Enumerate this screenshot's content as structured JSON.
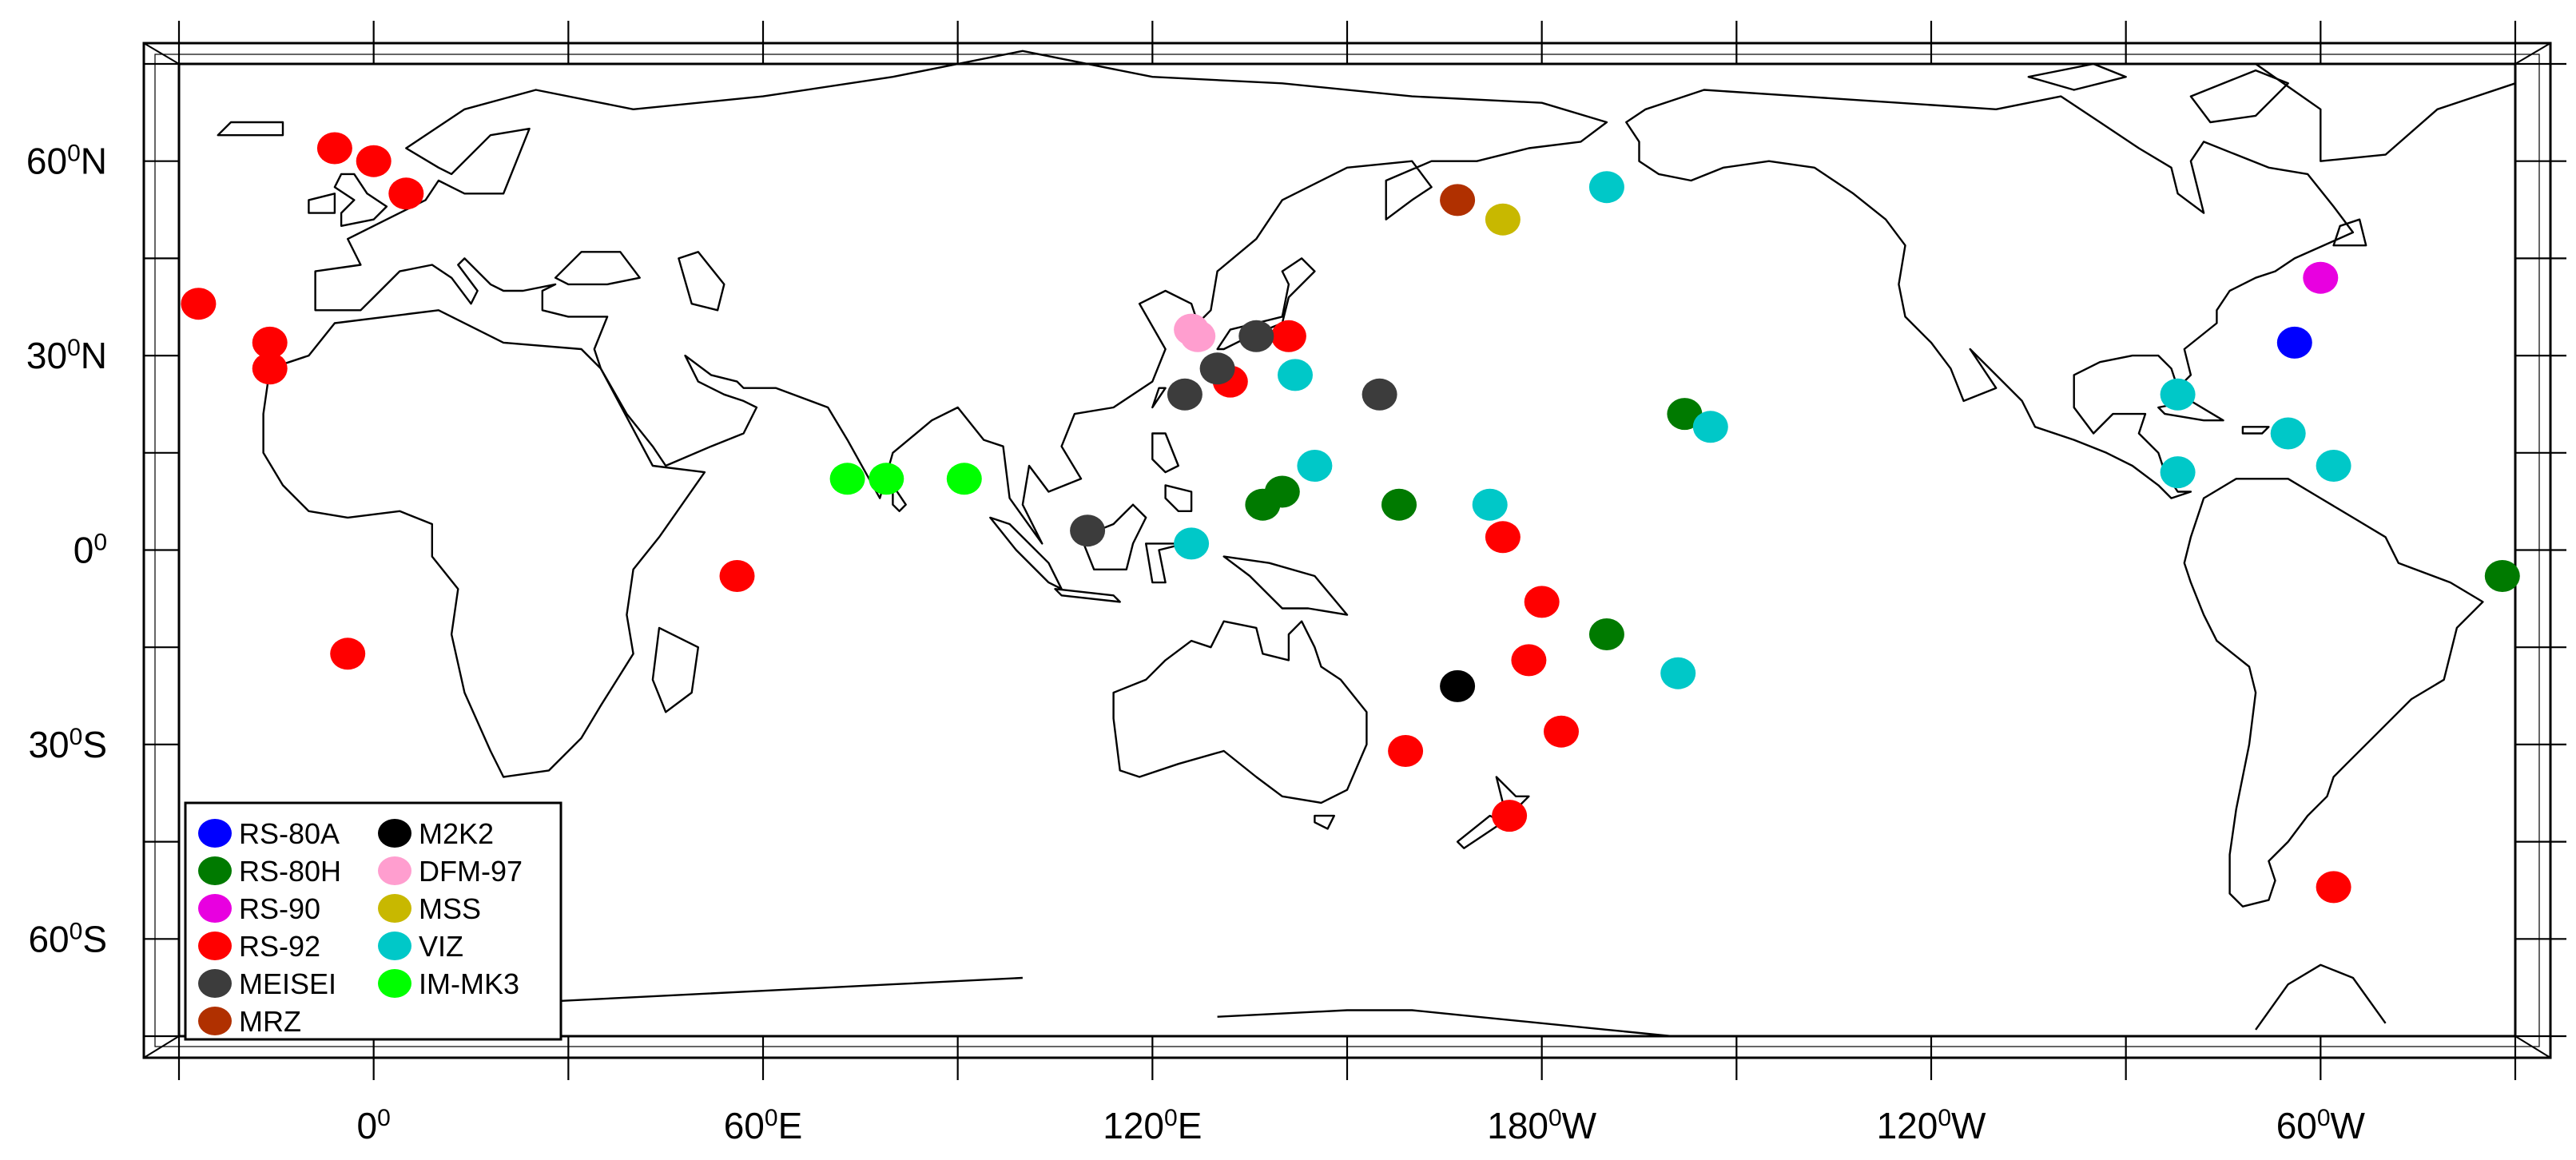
{
  "map": {
    "projection": "equirectangular",
    "center_longitude": 180,
    "lon_range": [
      -30,
      330
    ],
    "lat_range": [
      -75,
      75
    ],
    "x_ticks": [
      {
        "lon": 0,
        "num": "0",
        "sup": "0",
        "hem": ""
      },
      {
        "lon": 60,
        "num": "60",
        "sup": "0",
        "hem": "E"
      },
      {
        "lon": 120,
        "num": "120",
        "sup": "0",
        "hem": "E"
      },
      {
        "lon": 180,
        "num": "180",
        "sup": "0",
        "hem": "W"
      },
      {
        "lon": 240,
        "num": "120",
        "sup": "0",
        "hem": "W"
      },
      {
        "lon": 300,
        "num": "60",
        "sup": "0",
        "hem": "W"
      }
    ],
    "y_ticks": [
      {
        "lat": 60,
        "num": "60",
        "sup": "0",
        "hem": "N"
      },
      {
        "lat": 30,
        "num": "30",
        "sup": "0",
        "hem": "N"
      },
      {
        "lat": 0,
        "num": "0",
        "sup": "0",
        "hem": ""
      },
      {
        "lat": -30,
        "num": "30",
        "sup": "0",
        "hem": "S"
      },
      {
        "lat": -60,
        "num": "60",
        "sup": "0",
        "hem": "S"
      }
    ],
    "coastline_color": "#000000"
  },
  "legend": {
    "position": "bottom-left",
    "items": [
      {
        "key": "RS-80A",
        "label": "RS-80A",
        "color": "#0000ff"
      },
      {
        "key": "RS-80H",
        "label": "RS-80H",
        "color": "#007a00"
      },
      {
        "key": "RS-90",
        "label": "RS-90",
        "color": "#e800e0"
      },
      {
        "key": "RS-92",
        "label": "RS-92",
        "color": "#ff0000"
      },
      {
        "key": "MEISEI",
        "label": "MEISEI",
        "color": "#3c3c3c"
      },
      {
        "key": "MRZ",
        "label": "MRZ",
        "color": "#b03000"
      },
      {
        "key": "M2K2",
        "label": "M2K2",
        "color": "#000000"
      },
      {
        "key": "DFM-97",
        "label": "DFM-97",
        "color": "#ff9ecf"
      },
      {
        "key": "MSS",
        "label": "MSS",
        "color": "#c8b800"
      },
      {
        "key": "VIZ",
        "label": "VIZ",
        "color": "#00c8c8"
      },
      {
        "key": "IM-MK3",
        "label": "IM-MK3",
        "color": "#00ff00"
      }
    ]
  },
  "chart_data": {
    "type": "scatter",
    "title": "",
    "xlabel": "",
    "ylabel": "",
    "series": [
      {
        "name": "RS-80A",
        "points": [
          {
            "lon": 296,
            "lat": 32
          }
        ]
      },
      {
        "name": "RS-80H",
        "points": [
          {
            "lon": 137,
            "lat": 7
          },
          {
            "lon": 140,
            "lat": 9
          },
          {
            "lon": 158,
            "lat": 7
          },
          {
            "lon": 190,
            "lat": -13
          },
          {
            "lon": 202,
            "lat": 21
          },
          {
            "lon": 328,
            "lat": -4
          }
        ]
      },
      {
        "name": "RS-90",
        "points": [
          {
            "lon": 300,
            "lat": 42
          }
        ]
      },
      {
        "name": "RS-92",
        "points": [
          {
            "lon": -6,
            "lat": 62
          },
          {
            "lon": 0,
            "lat": 60
          },
          {
            "lon": 5,
            "lat": 55
          },
          {
            "lon": -27,
            "lat": 38
          },
          {
            "lon": -16,
            "lat": 32
          },
          {
            "lon": -16,
            "lat": 28
          },
          {
            "lon": 56,
            "lat": -4
          },
          {
            "lon": -4,
            "lat": -16
          },
          {
            "lon": 132,
            "lat": 26
          },
          {
            "lon": 141,
            "lat": 33
          },
          {
            "lon": 174,
            "lat": 2
          },
          {
            "lon": 180,
            "lat": -8
          },
          {
            "lon": 178,
            "lat": -17
          },
          {
            "lon": 183,
            "lat": -28
          },
          {
            "lon": 159,
            "lat": -31
          },
          {
            "lon": 175,
            "lat": -41
          },
          {
            "lon": 302,
            "lat": -52
          }
        ]
      },
      {
        "name": "MEISEI",
        "points": [
          {
            "lon": 125,
            "lat": 24
          },
          {
            "lon": 130,
            "lat": 28
          },
          {
            "lon": 136,
            "lat": 33
          },
          {
            "lon": 155,
            "lat": 24
          },
          {
            "lon": 110,
            "lat": 3
          }
        ]
      },
      {
        "name": "MRZ",
        "points": [
          {
            "lon": 167,
            "lat": 54
          }
        ]
      },
      {
        "name": "M2K2",
        "points": [
          {
            "lon": 167,
            "lat": -21
          }
        ]
      },
      {
        "name": "DFM-97",
        "points": [
          {
            "lon": 126,
            "lat": 34
          },
          {
            "lon": 127,
            "lat": 33
          }
        ]
      },
      {
        "name": "MSS",
        "points": [
          {
            "lon": 174,
            "lat": 51
          }
        ]
      },
      {
        "name": "VIZ",
        "points": [
          {
            "lon": 190,
            "lat": 56
          },
          {
            "lon": 142,
            "lat": 27
          },
          {
            "lon": 145,
            "lat": 13
          },
          {
            "lon": 172,
            "lat": 7
          },
          {
            "lon": 201,
            "lat": -19
          },
          {
            "lon": 206,
            "lat": 19
          },
          {
            "lon": 126,
            "lat": 1
          },
          {
            "lon": 278,
            "lat": 24
          },
          {
            "lon": 278,
            "lat": 12
          },
          {
            "lon": 295,
            "lat": 18
          },
          {
            "lon": 302,
            "lat": 13
          }
        ]
      },
      {
        "name": "IM-MK3",
        "points": [
          {
            "lon": 73,
            "lat": 11
          },
          {
            "lon": 79,
            "lat": 11
          },
          {
            "lon": 91,
            "lat": 11
          }
        ]
      }
    ]
  }
}
